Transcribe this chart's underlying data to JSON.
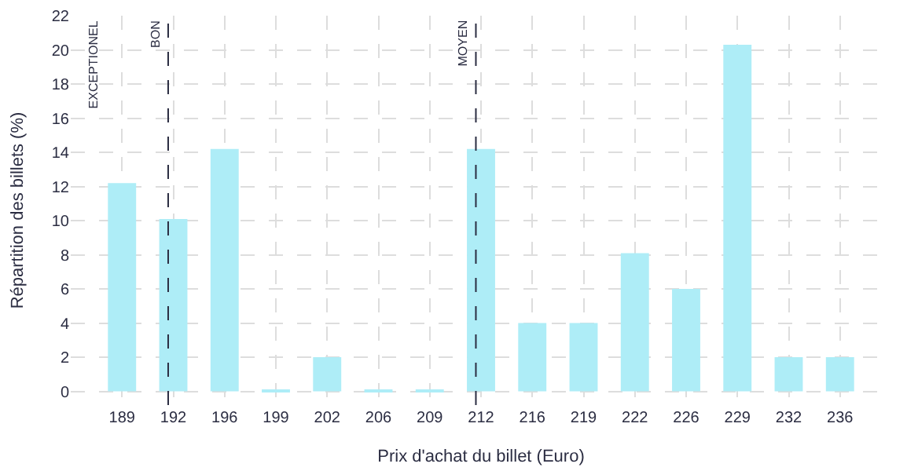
{
  "chart_data": {
    "type": "bar",
    "xlabel": "Prix d'achat du billet (Euro)",
    "ylabel": "Répartition des billets (%)",
    "categories": [
      "189",
      "192",
      "196",
      "199",
      "202",
      "206",
      "209",
      "212",
      "216",
      "219",
      "222",
      "226",
      "229",
      "232",
      "236"
    ],
    "values": [
      12.2,
      10.1,
      14.2,
      0.1,
      2,
      0.1,
      0.1,
      14.2,
      4,
      4,
      8.1,
      6,
      20.3,
      2,
      2
    ],
    "color": "#aeedf7",
    "ylim": [
      -0.8,
      22
    ],
    "yticks": [
      0,
      2,
      4,
      6,
      8,
      10,
      12,
      14,
      16,
      18,
      20,
      22
    ],
    "grid": true,
    "ref_lines": [
      {
        "axis": "x",
        "value": "192",
        "label": "BON",
        "color": "#2b2d42",
        "line_style": "dashed"
      },
      {
        "axis": "x",
        "value": "212",
        "label": "MOYEN",
        "color": "#2b2d42",
        "line_style": "dashed"
      }
    ],
    "annotations": [
      "EXCEPTIONEL"
    ]
  }
}
